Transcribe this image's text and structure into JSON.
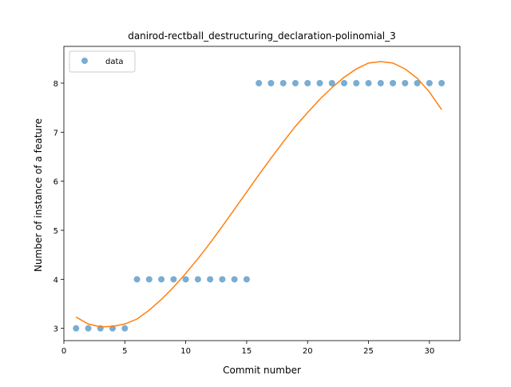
{
  "chart_data": {
    "type": "scatter",
    "title": "danirod-rectball_destructuring_declaration-polinomial_3",
    "xlabel": "Commit number",
    "ylabel": "Number of instance of a feature",
    "xlim": [
      0,
      32.5
    ],
    "ylim": [
      2.75,
      8.75
    ],
    "xticks": [
      0,
      5,
      10,
      15,
      20,
      25,
      30
    ],
    "yticks": [
      3,
      4,
      5,
      6,
      7,
      8
    ],
    "grid": false,
    "legend": {
      "placement": "top-left",
      "entries": [
        "data"
      ]
    },
    "series": [
      {
        "name": "data",
        "kind": "scatter",
        "color": "#1f77b4",
        "x": [
          1,
          2,
          3,
          4,
          5,
          6,
          7,
          8,
          9,
          10,
          11,
          12,
          13,
          14,
          15,
          16,
          17,
          18,
          19,
          20,
          21,
          22,
          23,
          24,
          25,
          26,
          27,
          28,
          29,
          30,
          31
        ],
        "y": [
          3,
          3,
          3,
          3,
          3,
          4,
          4,
          4,
          4,
          4,
          4,
          4,
          4,
          4,
          4,
          8,
          8,
          8,
          8,
          8,
          8,
          8,
          8,
          8,
          8,
          8,
          8,
          8,
          8,
          8,
          8
        ]
      },
      {
        "kind": "line",
        "color": "#ff7f0e",
        "x": [
          1,
          2,
          3,
          4,
          5,
          6,
          7,
          8,
          9,
          10,
          11,
          12,
          13,
          14,
          15,
          16,
          17,
          18,
          19,
          20,
          21,
          22,
          23,
          24,
          25,
          26,
          27,
          28,
          29,
          30,
          31
        ],
        "y": [
          3.23,
          3.09,
          3.03,
          3.04,
          3.09,
          3.19,
          3.37,
          3.59,
          3.84,
          4.12,
          4.42,
          4.74,
          5.08,
          5.43,
          5.78,
          6.13,
          6.47,
          6.8,
          7.12,
          7.4,
          7.67,
          7.91,
          8.12,
          8.29,
          8.41,
          8.44,
          8.41,
          8.29,
          8.1,
          7.82,
          7.46
        ]
      }
    ]
  }
}
